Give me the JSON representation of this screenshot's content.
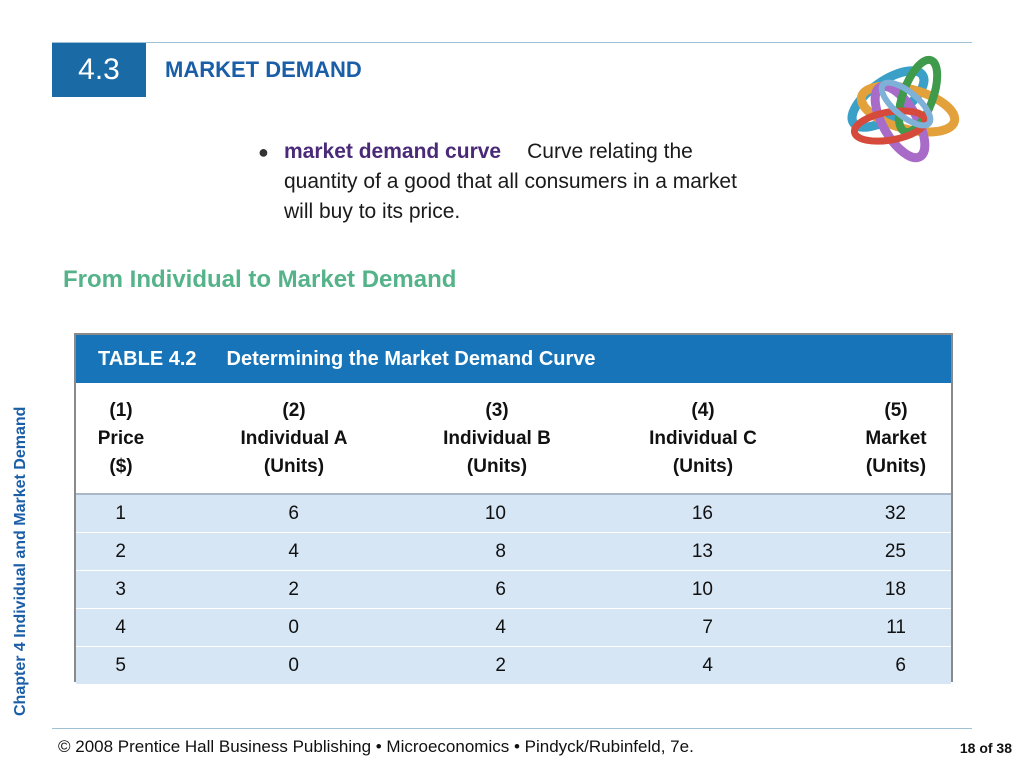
{
  "header": {
    "section_number": "4.3",
    "title": "MARKET DEMAND"
  },
  "definition": {
    "bullet": "●",
    "term": "market demand curve",
    "text": "Curve relating the quantity of a good that all consumers in a market will buy to its price."
  },
  "subheading": "From Individual to Market Demand",
  "side_label": "Chapter 4  Individual and Market Demand",
  "table": {
    "number": "TABLE 4.2",
    "caption": "Determining the Market Demand Curve",
    "columns": [
      {
        "num": "(1)",
        "name": "Price",
        "unit": "($)"
      },
      {
        "num": "(2)",
        "name": "Individual A",
        "unit": "(Units)"
      },
      {
        "num": "(3)",
        "name": "Individual B",
        "unit": "(Units)"
      },
      {
        "num": "(4)",
        "name": "Individual C",
        "unit": "(Units)"
      },
      {
        "num": "(5)",
        "name": "Market",
        "unit": "(Units)"
      }
    ],
    "rows": [
      [
        "1",
        "6",
        "10",
        "16",
        "32"
      ],
      [
        "2",
        "4",
        "8",
        "13",
        "25"
      ],
      [
        "3",
        "2",
        "6",
        "10",
        "18"
      ],
      [
        "4",
        "0",
        "4",
        "7",
        "11"
      ],
      [
        "5",
        "0",
        "2",
        "4",
        "6"
      ]
    ]
  },
  "footer": {
    "text": "© 2008 Prentice Hall Business Publishing  •  Microeconomics  •  Pindyck/Rubinfeld, 7e.",
    "page": "18 of 38"
  },
  "colors": {
    "badge": "#1a6aa6",
    "title": "#1a5ea8",
    "term": "#4a2a78",
    "subheading": "#55b38a",
    "table_header": "#1874b8",
    "table_body": "#d6e6f5"
  }
}
